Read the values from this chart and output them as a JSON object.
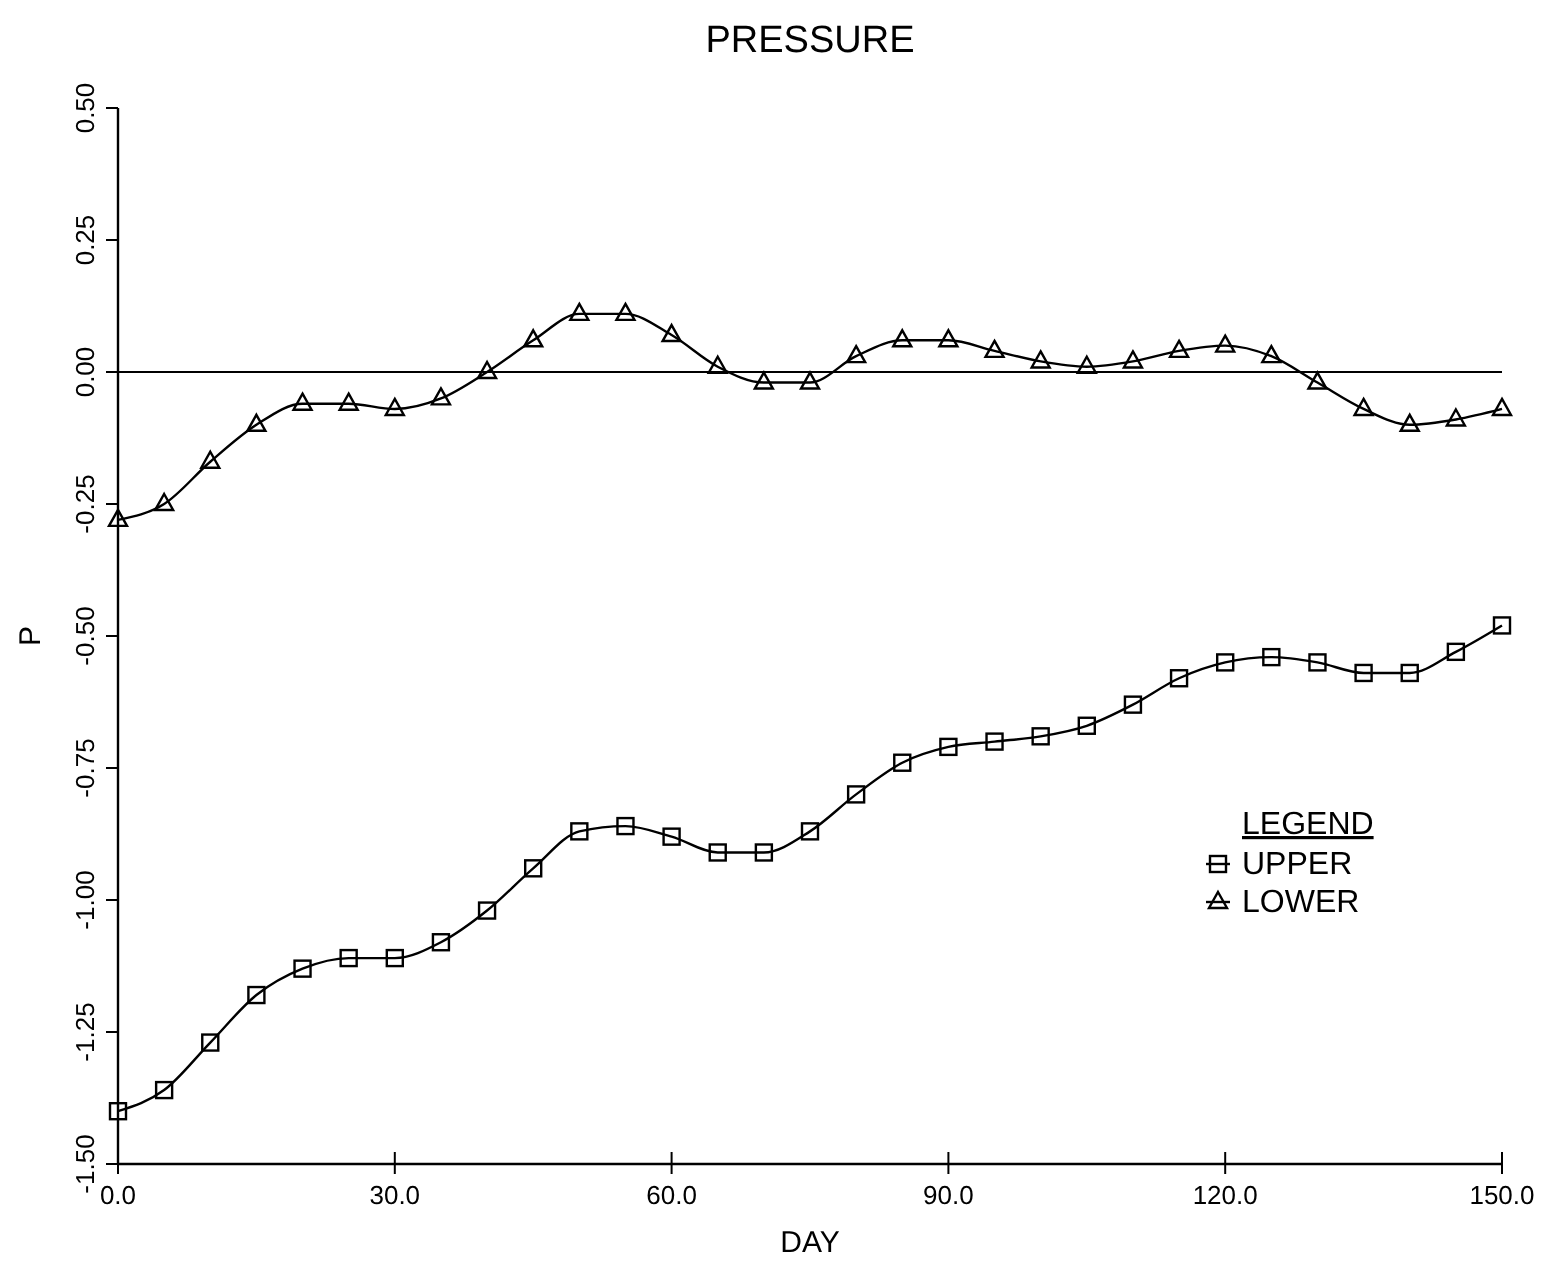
{
  "chart_data": {
    "type": "line",
    "title": "PRESSURE",
    "xlabel": "DAY",
    "ylabel": "P",
    "legend_title": "LEGEND",
    "x": [
      0,
      5,
      10,
      15,
      20,
      25,
      30,
      35,
      40,
      45,
      50,
      55,
      60,
      65,
      70,
      75,
      80,
      85,
      90,
      95,
      100,
      105,
      110,
      115,
      120,
      125,
      130,
      135,
      140,
      145,
      150
    ],
    "xlim": [
      0,
      150
    ],
    "xticks": [
      {
        "value": 0,
        "label": "0.0"
      },
      {
        "value": 30,
        "label": "30.0"
      },
      {
        "value": 60,
        "label": "60.0"
      },
      {
        "value": 90,
        "label": "90.0"
      },
      {
        "value": 120,
        "label": "120.0"
      },
      {
        "value": 150,
        "label": "150.0"
      }
    ],
    "ylim": [
      -1.5,
      0.5
    ],
    "yticks": [
      {
        "value": -1.5,
        "label": "-1.50"
      },
      {
        "value": -1.25,
        "label": "-1.25"
      },
      {
        "value": -1,
        "label": "-1.00"
      },
      {
        "value": -0.75,
        "label": "-0.75"
      },
      {
        "value": -0.5,
        "label": "-0.50"
      },
      {
        "value": -0.25,
        "label": "-0.25"
      },
      {
        "value": 0,
        "label": "0.00"
      },
      {
        "value": 0.25,
        "label": "0.25"
      },
      {
        "value": 0.5,
        "label": "0.50"
      }
    ],
    "series": [
      {
        "name": "UPPER",
        "color": "#000000",
        "marker": "square",
        "values": [
          -1.4,
          -1.36,
          -1.27,
          -1.18,
          -1.13,
          -1.11,
          -1.11,
          -1.08,
          -1.02,
          -0.94,
          -0.87,
          -0.86,
          -0.88,
          -0.91,
          -0.91,
          -0.87,
          -0.8,
          -0.74,
          -0.71,
          -0.7,
          -0.69,
          -0.67,
          -0.63,
          -0.58,
          -0.55,
          -0.54,
          -0.55,
          -0.57,
          -0.57,
          -0.53,
          -0.48
        ]
      },
      {
        "name": "LOWER",
        "color": "#000000",
        "marker": "triangle",
        "values": [
          -0.28,
          -0.25,
          -0.17,
          -0.1,
          -0.06,
          -0.06,
          -0.07,
          -0.05,
          0.0,
          0.06,
          0.11,
          0.11,
          0.07,
          0.01,
          -0.02,
          -0.02,
          0.03,
          0.06,
          0.06,
          0.04,
          0.02,
          0.01,
          0.02,
          0.04,
          0.05,
          0.03,
          -0.02,
          -0.07,
          -0.1,
          -0.09,
          -0.07
        ]
      }
    ],
    "ref_lines": [
      {
        "axis": "y",
        "value": 0,
        "color": "#000000"
      }
    ],
    "line_style": "solid",
    "grid": false,
    "legend": "bottom right"
  }
}
